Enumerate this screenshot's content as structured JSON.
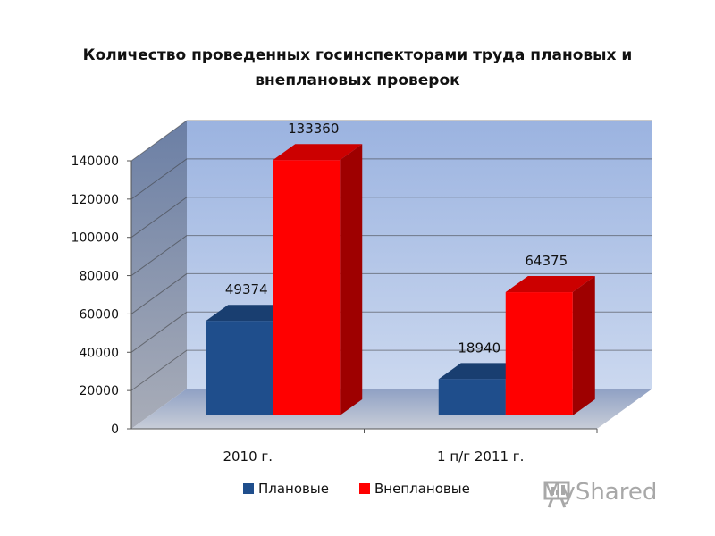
{
  "title_lines": [
    "Количество проведенных госинспекторами труда плановых и",
    "внеплановых проверок"
  ],
  "chart_data": {
    "type": "bar",
    "title": "Количество проведенных госинспекторами труда плановых и внеплановых проверок",
    "categories": [
      "2010 г.",
      "1 п/г 2011 г."
    ],
    "series": [
      {
        "name": "Плановые",
        "values": [
          49374,
          18940
        ],
        "color": "#1F4E8C"
      },
      {
        "name": "Внеплановые",
        "values": [
          133360,
          64375
        ],
        "color": "#FF0000"
      }
    ],
    "ylim": [
      0,
      140000
    ],
    "yticks": [
      0,
      20000,
      40000,
      60000,
      80000,
      100000,
      120000,
      140000
    ],
    "grid": true,
    "legend_position": "bottom",
    "data_labels": [
      "49374",
      "133360",
      "18940",
      "64375"
    ]
  },
  "watermark": {
    "text": "MyShared"
  }
}
